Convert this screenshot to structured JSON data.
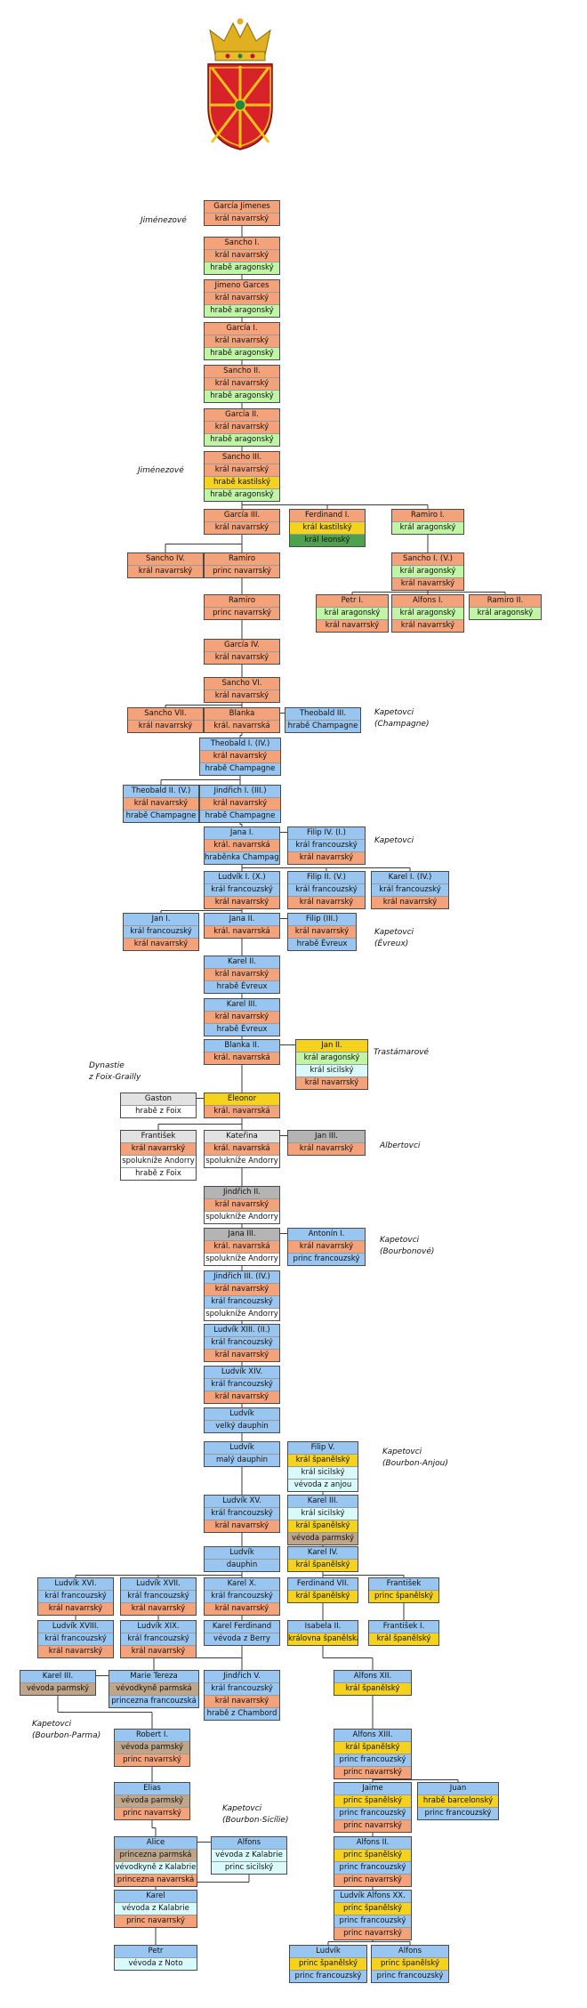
{
  "colors": {
    "o": "#f4a27a",
    "g": "#bff5a5",
    "y": "#f5d21e",
    "b": "#99c6f0",
    "w": "#ffffff",
    "k": "#b4b4b4",
    "p": "#f7c8a8",
    "c": "#d8fafa",
    "d": "#4ea24e",
    "t": "#bfa58a",
    "gy": "#e2e2e2"
  },
  "labels": [
    "Jiménezové",
    "Jiménezové",
    "Kapetovci",
    "(Champagne)",
    "Kapetovci",
    "Kapetovci",
    "(Évreux)",
    "Trastámarové",
    "Dynastie",
    "z Foix-Grailly",
    "Albertovci",
    "Kapetovci",
    "(Bourbonové)",
    "Kapetovci",
    "(Bourbon-Anjou)",
    "Kapetovci",
    "(Bourbon-Parma)",
    "Kapetovci",
    "(Bourbon-Sicílie)"
  ],
  "persons": [
    {
      "id": "garcia-jimenes",
      "rows": [
        [
          "García Jimenes",
          "o"
        ],
        [
          "král navarrský",
          "o"
        ]
      ]
    },
    {
      "id": "sancho-1",
      "rows": [
        [
          "Sancho I.",
          "o"
        ],
        [
          "král navarrský",
          "o"
        ],
        [
          "hrabě aragonský",
          "g"
        ]
      ]
    },
    {
      "id": "jimeno-garces",
      "rows": [
        [
          "Jimeno Garces",
          "o"
        ],
        [
          "král navarrský",
          "o"
        ],
        [
          "hrabě aragonský",
          "g"
        ]
      ]
    },
    {
      "id": "garcia-1",
      "rows": [
        [
          "García I.",
          "o"
        ],
        [
          "král navarrský",
          "o"
        ],
        [
          "hrabě aragonský",
          "g"
        ]
      ]
    },
    {
      "id": "sancho-2",
      "rows": [
        [
          "Sancho II.",
          "o"
        ],
        [
          "král navarrský",
          "o"
        ],
        [
          "hrabě aragonský",
          "g"
        ]
      ]
    },
    {
      "id": "garcia-2",
      "rows": [
        [
          "García II.",
          "o"
        ],
        [
          "král navarrský",
          "o"
        ],
        [
          "hrabě aragonský",
          "g"
        ]
      ]
    },
    {
      "id": "sancho-3",
      "rows": [
        [
          "Sancho III.",
          "o"
        ],
        [
          "král navarrský",
          "o"
        ],
        [
          "hrabě kastilský",
          "y"
        ],
        [
          "hrabě aragonský",
          "g"
        ]
      ]
    },
    {
      "id": "garcia-3",
      "rows": [
        [
          "García III.",
          "o"
        ],
        [
          "král navarrský",
          "o"
        ]
      ]
    },
    {
      "id": "ferdinand-1",
      "rows": [
        [
          "Ferdinand I.",
          "o"
        ],
        [
          "král kastilský",
          "y"
        ],
        [
          "král leonský",
          "d"
        ]
      ]
    },
    {
      "id": "ramiro-1",
      "rows": [
        [
          "Ramiro I.",
          "o"
        ],
        [
          "král aragonský",
          "g"
        ]
      ]
    },
    {
      "id": "sancho-4",
      "rows": [
        [
          "Sancho IV.",
          "o"
        ],
        [
          "král navarrský",
          "o"
        ]
      ]
    },
    {
      "id": "ramiro-princ",
      "rows": [
        [
          "Ramiro",
          "o"
        ],
        [
          "princ navarrský",
          "o"
        ]
      ]
    },
    {
      "id": "sancho-1-5",
      "rows": [
        [
          "Sancho I. (V.)",
          "o"
        ],
        [
          "král aragonský",
          "g"
        ],
        [
          "král navarrský",
          "o"
        ]
      ]
    },
    {
      "id": "ramiro-princ-2",
      "rows": [
        [
          "Ramiro",
          "o"
        ],
        [
          "princ navarrský",
          "o"
        ]
      ]
    },
    {
      "id": "petr-1",
      "rows": [
        [
          "Petr I.",
          "o"
        ],
        [
          "král aragonský",
          "g"
        ],
        [
          "král navarrský",
          "o"
        ]
      ]
    },
    {
      "id": "alfons-1",
      "rows": [
        [
          "Alfons I.",
          "o"
        ],
        [
          "král aragonský",
          "g"
        ],
        [
          "král navarrský",
          "o"
        ]
      ]
    },
    {
      "id": "ramiro-2",
      "rows": [
        [
          "Ramiro II.",
          "o"
        ],
        [
          "král aragonský",
          "g"
        ]
      ]
    },
    {
      "id": "garcia-4",
      "rows": [
        [
          "García IV.",
          "o"
        ],
        [
          "král navarrský",
          "o"
        ]
      ]
    },
    {
      "id": "sancho-6",
      "rows": [
        [
          "Sancho VI.",
          "o"
        ],
        [
          "král navarrský",
          "o"
        ]
      ]
    },
    {
      "id": "sancho-7",
      "rows": [
        [
          "Sancho VII.",
          "o"
        ],
        [
          "král navarrský",
          "o"
        ]
      ]
    },
    {
      "id": "blanka",
      "rows": [
        [
          "Blanka",
          "o"
        ],
        [
          "král. navarrská",
          "o"
        ]
      ]
    },
    {
      "id": "theobald-3",
      "rows": [
        [
          "Theobald III.",
          "b"
        ],
        [
          "hrabě Champagne",
          "b"
        ]
      ]
    },
    {
      "id": "theobald-1-4",
      "rows": [
        [
          "Theobald I. (IV.)",
          "b"
        ],
        [
          "král navarrský",
          "o"
        ],
        [
          "hrabě Champagne",
          "b"
        ]
      ]
    },
    {
      "id": "theobald-2-5",
      "rows": [
        [
          "Theobald II. (V.)",
          "b"
        ],
        [
          "král navarrský",
          "o"
        ],
        [
          "hrabě Champagne",
          "b"
        ]
      ]
    },
    {
      "id": "jindrich-1-3",
      "rows": [
        [
          "Jindřich I. (III.)",
          "b"
        ],
        [
          "král navarrský",
          "o"
        ],
        [
          "hrabě Champagne",
          "b"
        ]
      ]
    },
    {
      "id": "jana-1",
      "rows": [
        [
          "Jana I.",
          "b"
        ],
        [
          "král. navarrská",
          "o"
        ],
        [
          "hraběnka Champagne",
          "b"
        ]
      ]
    },
    {
      "id": "filip-4-1",
      "rows": [
        [
          "Filip IV. (I.)",
          "b"
        ],
        [
          "král francouzský",
          "b"
        ],
        [
          "král navarrský",
          "o"
        ]
      ]
    },
    {
      "id": "ludvik-1-10",
      "rows": [
        [
          "Ludvík I. (X.)",
          "b"
        ],
        [
          "král francouzský",
          "b"
        ],
        [
          "král navarrský",
          "o"
        ]
      ]
    },
    {
      "id": "filip-2-5",
      "rows": [
        [
          "Filip II. (V.)",
          "b"
        ],
        [
          "král francouzský",
          "b"
        ],
        [
          "král navarrský",
          "o"
        ]
      ]
    },
    {
      "id": "karel-1-4",
      "rows": [
        [
          "Karel I. (IV.)",
          "b"
        ],
        [
          "král francouzský",
          "b"
        ],
        [
          "král navarrský",
          "o"
        ]
      ]
    },
    {
      "id": "jan-1",
      "rows": [
        [
          "Jan I.",
          "b"
        ],
        [
          "král francouzský",
          "b"
        ],
        [
          "král navarrský",
          "o"
        ]
      ]
    },
    {
      "id": "jana-2",
      "rows": [
        [
          "Jana II.",
          "b"
        ],
        [
          "král. navarrská",
          "o"
        ]
      ]
    },
    {
      "id": "filip-3",
      "rows": [
        [
          "Filip (III.)",
          "b"
        ],
        [
          "král navarrský",
          "o"
        ],
        [
          "hrabě Évreux",
          "b"
        ]
      ]
    },
    {
      "id": "karel-2",
      "rows": [
        [
          "Karel II.",
          "b"
        ],
        [
          "král navarrský",
          "o"
        ],
        [
          "hrabě Évreux",
          "b"
        ]
      ]
    },
    {
      "id": "karel-3",
      "rows": [
        [
          "Karel III.",
          "b"
        ],
        [
          "král navarrský",
          "o"
        ],
        [
          "hrabě Évreux",
          "b"
        ]
      ]
    },
    {
      "id": "blanka-2",
      "rows": [
        [
          "Blanka II.",
          "b"
        ],
        [
          "král. navarrská",
          "o"
        ]
      ]
    },
    {
      "id": "jan-2",
      "rows": [
        [
          "Jan II.",
          "y"
        ],
        [
          "král aragonský",
          "g"
        ],
        [
          "král sicilský",
          "c"
        ],
        [
          "král navarrský",
          "o"
        ]
      ]
    },
    {
      "id": "gaston",
      "rows": [
        [
          "Gaston",
          "gy"
        ],
        [
          "hrabě z Foix",
          "w"
        ]
      ]
    },
    {
      "id": "eleonor",
      "rows": [
        [
          "Eleonor",
          "y"
        ],
        [
          "král. navarrská",
          "o"
        ]
      ]
    },
    {
      "id": "frantisek",
      "rows": [
        [
          "František",
          "gy"
        ],
        [
          "král navarrský",
          "o"
        ],
        [
          "spolukníže Andorry",
          "w"
        ],
        [
          "hrabě z Foix",
          "w"
        ]
      ]
    },
    {
      "id": "katerina",
      "rows": [
        [
          "Kateřina",
          "gy"
        ],
        [
          "král. navarrská",
          "o"
        ],
        [
          "spolukníže Andorry",
          "w"
        ]
      ]
    },
    {
      "id": "jan-3",
      "rows": [
        [
          "Jan III.",
          "k"
        ],
        [
          "král navarrský",
          "o"
        ]
      ]
    },
    {
      "id": "jindrich-2",
      "rows": [
        [
          "Jindřich II.",
          "k"
        ],
        [
          "král navarrský",
          "o"
        ],
        [
          "spolukníže Andorry",
          "w"
        ]
      ]
    },
    {
      "id": "jana-3",
      "rows": [
        [
          "Jana III.",
          "k"
        ],
        [
          "král. navarrská",
          "o"
        ],
        [
          "spolukníže Andorry",
          "w"
        ]
      ]
    },
    {
      "id": "antonin-1",
      "rows": [
        [
          "Antonín I.",
          "b"
        ],
        [
          "král navarrský",
          "o"
        ],
        [
          "princ francouzský",
          "b"
        ]
      ]
    },
    {
      "id": "jindrich-3-4",
      "rows": [
        [
          "Jindřich III. (IV.)",
          "b"
        ],
        [
          "král navarrský",
          "o"
        ],
        [
          "král francouzský",
          "b"
        ],
        [
          "spolukníže Andorry",
          "w"
        ]
      ]
    },
    {
      "id": "ludvik-13-2",
      "rows": [
        [
          "Ludvík XIII. (II.)",
          "b"
        ],
        [
          "král francouzský",
          "b"
        ],
        [
          "král navarrský",
          "o"
        ]
      ]
    },
    {
      "id": "ludvik-14",
      "rows": [
        [
          "Ludvík XIV.",
          "b"
        ],
        [
          "král francouzský",
          "b"
        ],
        [
          "král navarrský",
          "o"
        ]
      ]
    },
    {
      "id": "ludvik-dauphin-velky",
      "rows": [
        [
          "Ludvík",
          "b"
        ],
        [
          "velký dauphin",
          "b"
        ]
      ]
    },
    {
      "id": "ludvik-dauphin-maly",
      "rows": [
        [
          "Ludvík",
          "b"
        ],
        [
          "malý dauphin",
          "b"
        ]
      ]
    },
    {
      "id": "filip-5",
      "rows": [
        [
          "Filip V.",
          "b"
        ],
        [
          "král španělský",
          "y"
        ],
        [
          "král sicilský",
          "c"
        ],
        [
          "vévoda z anjou",
          "c"
        ]
      ]
    },
    {
      "id": "ludvik-15",
      "rows": [
        [
          "Ludvík XV.",
          "b"
        ],
        [
          "král francouzský",
          "b"
        ],
        [
          "král navarrský",
          "o"
        ]
      ]
    },
    {
      "id": "karel-3-spain",
      "rows": [
        [
          "Karel III.",
          "b"
        ],
        [
          "král sicilský",
          "c"
        ],
        [
          "král španělský",
          "y"
        ],
        [
          "vévoda parmský",
          "t"
        ]
      ]
    },
    {
      "id": "ludvik-dauphin",
      "rows": [
        [
          "Ludvík",
          "b"
        ],
        [
          "dauphin",
          "b"
        ]
      ]
    },
    {
      "id": "karel-4",
      "rows": [
        [
          "Karel IV.",
          "b"
        ],
        [
          "král španělský",
          "y"
        ]
      ]
    },
    {
      "id": "ludvik-16",
      "rows": [
        [
          "Ludvík XVI.",
          "b"
        ],
        [
          "král francouzský",
          "b"
        ],
        [
          "král navarrský",
          "o"
        ]
      ]
    },
    {
      "id": "ludvik-17",
      "rows": [
        [
          "Ludvík XVII.",
          "b"
        ],
        [
          "král francouzský",
          "b"
        ],
        [
          "král navarrský",
          "o"
        ]
      ]
    },
    {
      "id": "karel-10",
      "rows": [
        [
          "Karel X.",
          "b"
        ],
        [
          "král francouzský",
          "b"
        ],
        [
          "král navarrský",
          "o"
        ]
      ]
    },
    {
      "id": "ferdinand-7",
      "rows": [
        [
          "Ferdinand VII.",
          "b"
        ],
        [
          "král španělský",
          "y"
        ]
      ]
    },
    {
      "id": "frantisek-princ",
      "rows": [
        [
          "František",
          "b"
        ],
        [
          "princ španělský",
          "y"
        ]
      ]
    },
    {
      "id": "ludvik-18",
      "rows": [
        [
          "Ludvík XVIII.",
          "b"
        ],
        [
          "král francouzský",
          "b"
        ],
        [
          "král navarrský",
          "o"
        ]
      ]
    },
    {
      "id": "ludvik-19",
      "rows": [
        [
          "Ludvík XIX.",
          "b"
        ],
        [
          "král francouzský",
          "b"
        ],
        [
          "král navarrský",
          "o"
        ]
      ]
    },
    {
      "id": "karel-ferdinand",
      "rows": [
        [
          "Karel Ferdinand",
          "b"
        ],
        [
          "vévoda z Berry",
          "b"
        ]
      ]
    },
    {
      "id": "isabela-2",
      "rows": [
        [
          "Isabela II.",
          "b"
        ],
        [
          "královna španělská",
          "y"
        ]
      ]
    },
    {
      "id": "frantisek-1",
      "rows": [
        [
          "František I.",
          "b"
        ],
        [
          "král španělský",
          "y"
        ]
      ]
    },
    {
      "id": "karel-3-parma",
      "rows": [
        [
          "Karel III.",
          "b"
        ],
        [
          "vévoda parmský",
          "t"
        ]
      ]
    },
    {
      "id": "marie-tereza",
      "rows": [
        [
          "Marie Tereza",
          "b"
        ],
        [
          "vévodkyně parmská",
          "t"
        ],
        [
          "princezna francouzská",
          "b"
        ]
      ]
    },
    {
      "id": "jindrich-5",
      "rows": [
        [
          "Jindřich V.",
          "b"
        ],
        [
          "král francouzský",
          "b"
        ],
        [
          "král navarrský",
          "o"
        ],
        [
          "hrabě z Chambord",
          "b"
        ]
      ]
    },
    {
      "id": "alfons-12",
      "rows": [
        [
          "Alfons XII.",
          "b"
        ],
        [
          "král španělský",
          "y"
        ]
      ]
    },
    {
      "id": "robert-1",
      "rows": [
        [
          "Robert I.",
          "b"
        ],
        [
          "vévoda parmský",
          "t"
        ],
        [
          "princ navarrský",
          "o"
        ]
      ]
    },
    {
      "id": "alfons-13",
      "rows": [
        [
          "Alfons XIII.",
          "b"
        ],
        [
          "král španělský",
          "y"
        ],
        [
          "princ francouzský",
          "b"
        ],
        [
          "princ navarrský",
          "o"
        ]
      ]
    },
    {
      "id": "elias",
      "rows": [
        [
          "Elias",
          "b"
        ],
        [
          "vévoda parmský",
          "t"
        ],
        [
          "princ navarrský",
          "o"
        ]
      ]
    },
    {
      "id": "jaime",
      "rows": [
        [
          "Jaime",
          "b"
        ],
        [
          "princ španělský",
          "y"
        ],
        [
          "princ francouzský",
          "b"
        ],
        [
          "princ navarrský",
          "o"
        ]
      ]
    },
    {
      "id": "juan",
      "rows": [
        [
          "Juan",
          "b"
        ],
        [
          "hrabě barcelonský",
          "y"
        ],
        [
          "princ francouzský",
          "b"
        ]
      ]
    },
    {
      "id": "alice",
      "rows": [
        [
          "Alice",
          "b"
        ],
        [
          "princezna parmská",
          "t"
        ],
        [
          "vévodkyně z Kalabrie",
          "c"
        ],
        [
          "princezna navarrská",
          "o"
        ]
      ]
    },
    {
      "id": "alfons",
      "rows": [
        [
          "Alfons",
          "b"
        ],
        [
          "vévoda z Kalabrie",
          "c"
        ],
        [
          "princ sicilský",
          "c"
        ]
      ]
    },
    {
      "id": "alfons-2",
      "rows": [
        [
          "Alfons II.",
          "b"
        ],
        [
          "princ španělský",
          "y"
        ],
        [
          "princ francouzský",
          "b"
        ],
        [
          "princ navarrský",
          "o"
        ]
      ]
    },
    {
      "id": "karel-kalabrie",
      "rows": [
        [
          "Karel",
          "b"
        ],
        [
          "vévoda z Kalabrie",
          "c"
        ],
        [
          "princ navarrský",
          "o"
        ]
      ]
    },
    {
      "id": "ludvik-alfons-20",
      "rows": [
        [
          "Ludvík Alfons XX.",
          "b"
        ],
        [
          "princ španělský",
          "y"
        ],
        [
          "princ francouzský",
          "b"
        ],
        [
          "princ navarrský",
          "o"
        ]
      ]
    },
    {
      "id": "petr",
      "rows": [
        [
          "Petr",
          "b"
        ],
        [
          "vévoda z Noto",
          "c"
        ]
      ]
    },
    {
      "id": "ludvik-spain",
      "rows": [
        [
          "Ludvík",
          "b"
        ],
        [
          "princ španělský",
          "y"
        ],
        [
          "princ francouzský",
          "b"
        ]
      ]
    },
    {
      "id": "alfons-last",
      "rows": [
        [
          "Alfons",
          "b"
        ],
        [
          "princ španělský",
          "y"
        ],
        [
          "princ francouzský",
          "b"
        ]
      ]
    }
  ]
}
